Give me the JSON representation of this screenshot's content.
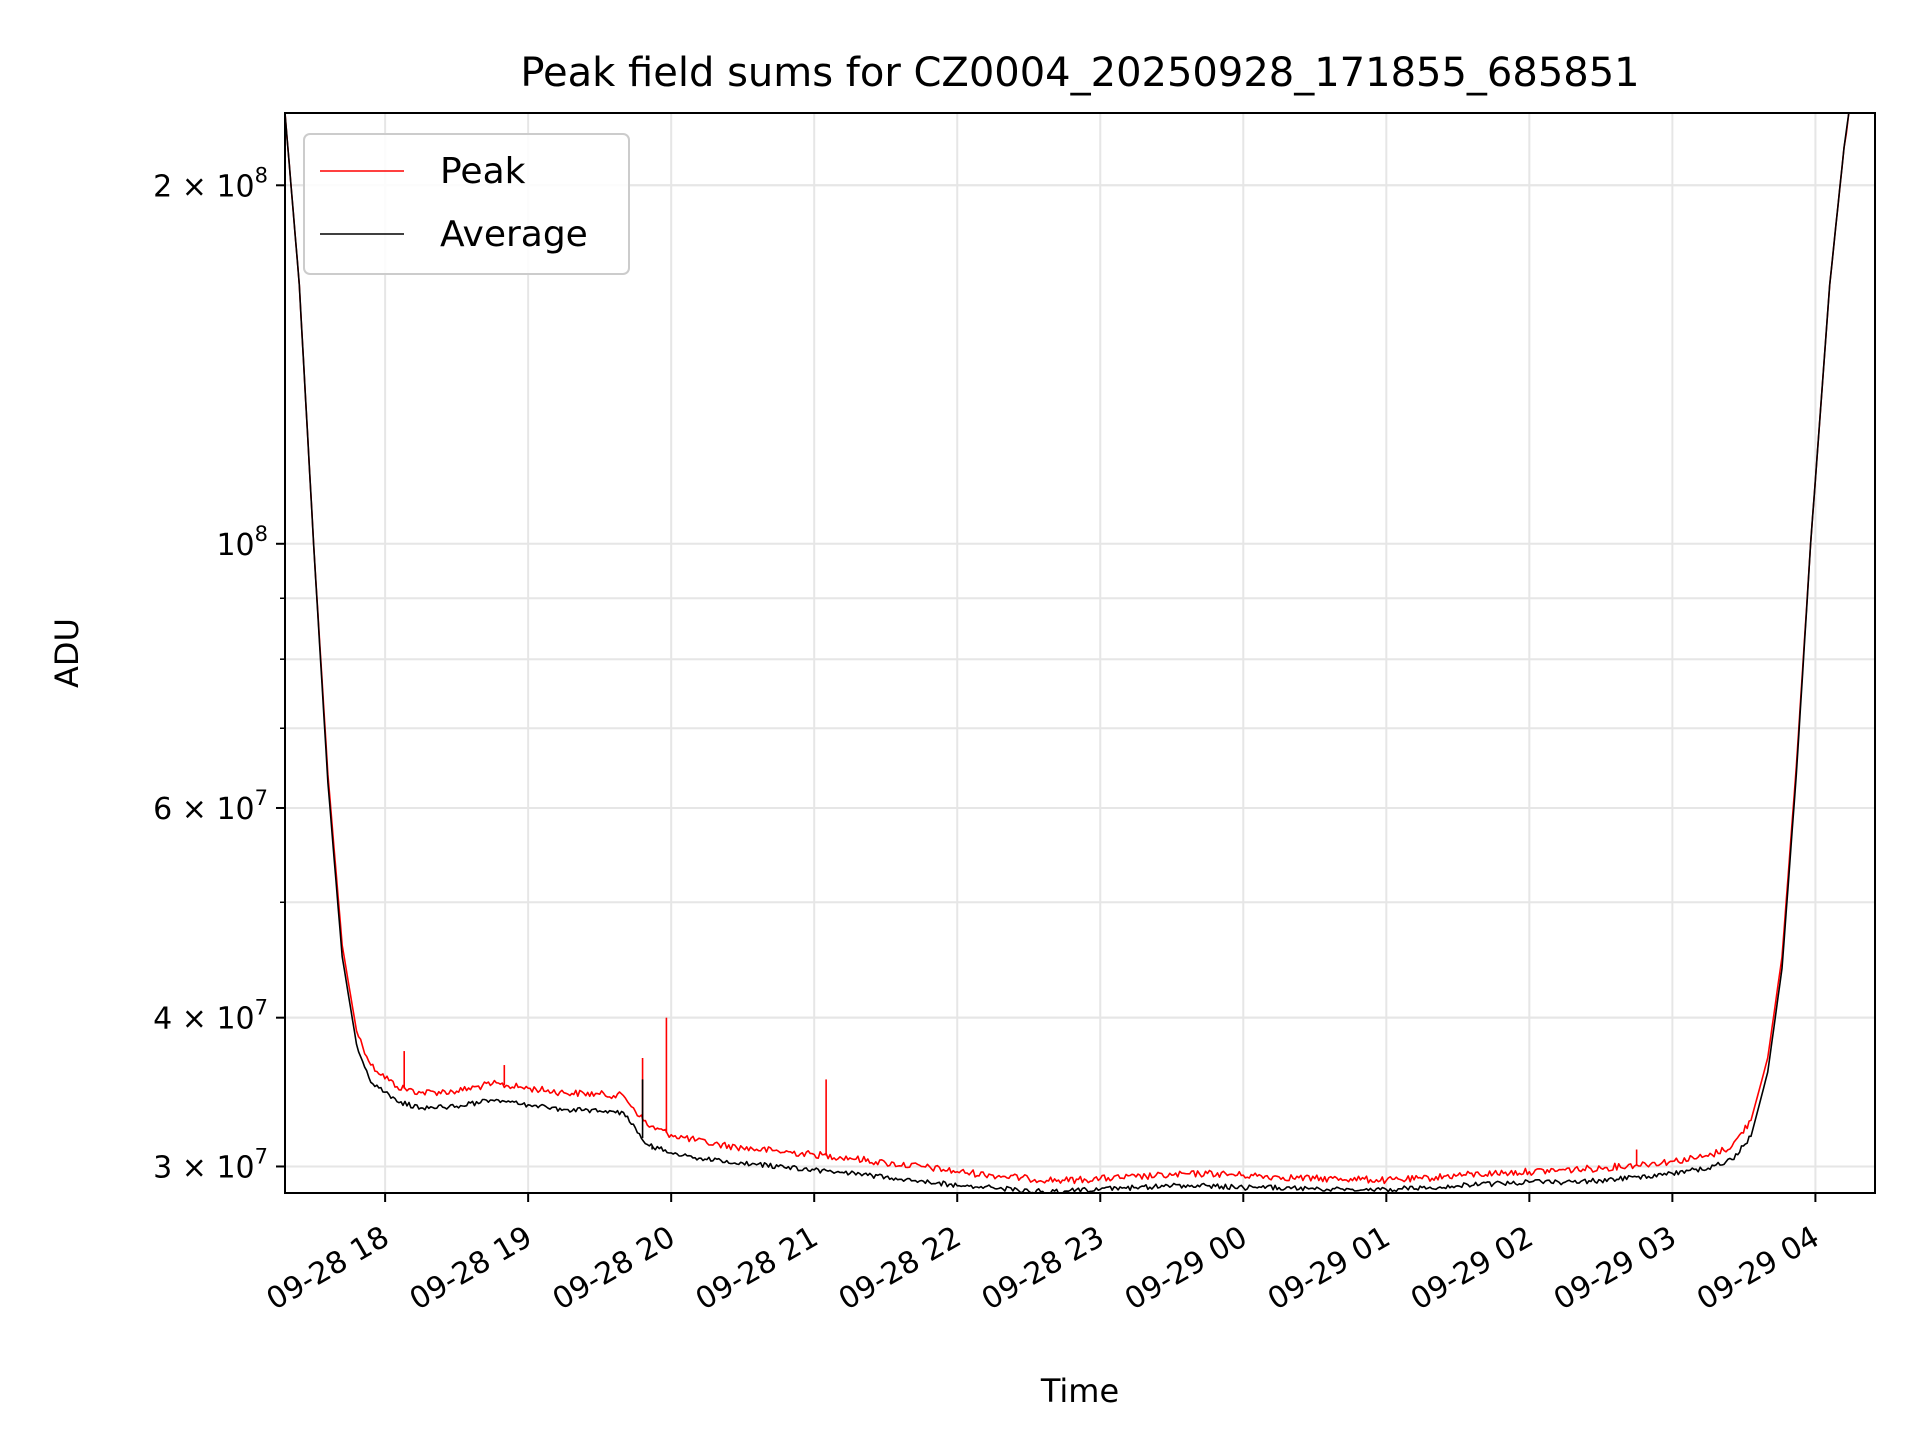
{
  "chart_data": {
    "type": "line",
    "title": "Peak field sums for CZ0004_20250928_171855_685851",
    "xlabel": "Time",
    "ylabel": "ADU",
    "y_scale": "log",
    "xlim": [
      "2025-09-28 17:18",
      "2025-09-29 04:25"
    ],
    "ylim": [
      28500000,
      230000000
    ],
    "grid": true,
    "legend_position": "top-left",
    "x_ticks": [
      "09-28 18",
      "09-28 19",
      "09-28 20",
      "09-28 21",
      "09-28 22",
      "09-28 23",
      "09-29 00",
      "09-29 01",
      "09-29 02",
      "09-29 03",
      "09-29 04"
    ],
    "y_ticks": [
      {
        "value": 200000000,
        "mantissa": "2",
        "exponent": "8"
      },
      {
        "value": 100000000,
        "mantissa": "",
        "exponent": "8"
      },
      {
        "value": 60000000,
        "mantissa": "6",
        "exponent": "7"
      },
      {
        "value": 40000000,
        "mantissa": "4",
        "exponent": "7"
      },
      {
        "value": 30000000,
        "mantissa": "3",
        "exponent": "7"
      }
    ],
    "series": [
      {
        "name": "Peak",
        "color": "#ff0000",
        "points": [
          [
            "2025-09-28 17:18",
            230000000
          ],
          [
            "2025-09-28 17:24",
            165000000
          ],
          [
            "2025-09-28 17:30",
            100000000
          ],
          [
            "2025-09-28 17:36",
            64000000
          ],
          [
            "2025-09-28 17:42",
            46000000
          ],
          [
            "2025-09-28 17:48",
            39000000
          ],
          [
            "2025-09-28 17:54",
            36500000
          ],
          [
            "2025-09-28 18:05",
            35000000
          ],
          [
            "2025-09-28 18:15",
            34600000
          ],
          [
            "2025-09-28 18:30",
            34700000
          ],
          [
            "2025-09-28 18:45",
            35200000
          ],
          [
            "2025-09-28 19:00",
            34900000
          ],
          [
            "2025-09-28 19:15",
            34600000
          ],
          [
            "2025-09-28 19:30",
            34500000
          ],
          [
            "2025-09-28 19:40",
            34400000
          ],
          [
            "2025-09-28 19:50",
            32500000
          ],
          [
            "2025-09-28 20:00",
            31900000
          ],
          [
            "2025-09-28 20:15",
            31400000
          ],
          [
            "2025-09-28 20:30",
            31100000
          ],
          [
            "2025-09-28 20:45",
            30900000
          ],
          [
            "2025-09-28 21:00",
            30700000
          ],
          [
            "2025-09-28 21:15",
            30500000
          ],
          [
            "2025-09-28 21:30",
            30200000
          ],
          [
            "2025-09-28 21:45",
            30000000
          ],
          [
            "2025-09-28 22:00",
            29700000
          ],
          [
            "2025-09-28 22:15",
            29500000
          ],
          [
            "2025-09-28 22:30",
            29300000
          ],
          [
            "2025-09-28 22:45",
            29200000
          ],
          [
            "2025-09-28 23:00",
            29300000
          ],
          [
            "2025-09-28 23:15",
            29400000
          ],
          [
            "2025-09-28 23:30",
            29500000
          ],
          [
            "2025-09-28 23:45",
            29600000
          ],
          [
            "2025-09-29 00:00",
            29500000
          ],
          [
            "2025-09-29 00:15",
            29400000
          ],
          [
            "2025-09-29 00:30",
            29300000
          ],
          [
            "2025-09-29 00:45",
            29300000
          ],
          [
            "2025-09-29 01:00",
            29200000
          ],
          [
            "2025-09-29 01:15",
            29300000
          ],
          [
            "2025-09-29 01:30",
            29500000
          ],
          [
            "2025-09-29 01:45",
            29600000
          ],
          [
            "2025-09-29 02:00",
            29700000
          ],
          [
            "2025-09-29 02:15",
            29800000
          ],
          [
            "2025-09-29 02:30",
            29900000
          ],
          [
            "2025-09-29 02:45",
            30100000
          ],
          [
            "2025-09-29 03:00",
            30300000
          ],
          [
            "2025-09-29 03:15",
            30600000
          ],
          [
            "2025-09-29 03:25",
            31200000
          ],
          [
            "2025-09-29 03:33",
            32800000
          ],
          [
            "2025-09-29 03:40",
            37000000
          ],
          [
            "2025-09-29 03:46",
            45000000
          ],
          [
            "2025-09-29 03:52",
            65000000
          ],
          [
            "2025-09-29 03:58",
            100000000
          ],
          [
            "2025-09-29 04:06",
            165000000
          ],
          [
            "2025-09-29 04:12",
            215000000
          ],
          [
            "2025-09-29 04:14",
            230000000
          ]
        ],
        "spikes": [
          [
            "2025-09-28 19:48",
            37000000
          ],
          [
            "2025-09-28 19:58",
            40000000
          ],
          [
            "2025-09-28 21:05",
            35500000
          ],
          [
            "2025-09-28 18:08",
            37500000
          ],
          [
            "2025-09-28 18:50",
            36500000
          ],
          [
            "2025-09-29 02:45",
            31000000
          ]
        ]
      },
      {
        "name": "Average",
        "color": "#000000",
        "points": [
          [
            "2025-09-28 17:18",
            230000000
          ],
          [
            "2025-09-28 17:24",
            165000000
          ],
          [
            "2025-09-28 17:30",
            100000000
          ],
          [
            "2025-09-28 17:36",
            63000000
          ],
          [
            "2025-09-28 17:42",
            45000000
          ],
          [
            "2025-09-28 17:48",
            38000000
          ],
          [
            "2025-09-28 17:54",
            35300000
          ],
          [
            "2025-09-28 18:05",
            34000000
          ],
          [
            "2025-09-28 18:15",
            33600000
          ],
          [
            "2025-09-28 18:30",
            33700000
          ],
          [
            "2025-09-28 18:45",
            34100000
          ],
          [
            "2025-09-28 19:00",
            33800000
          ],
          [
            "2025-09-28 19:15",
            33500000
          ],
          [
            "2025-09-28 19:30",
            33400000
          ],
          [
            "2025-09-28 19:40",
            33300000
          ],
          [
            "2025-09-28 19:50",
            31300000
          ],
          [
            "2025-09-28 20:00",
            30800000
          ],
          [
            "2025-09-28 20:15",
            30400000
          ],
          [
            "2025-09-28 20:30",
            30200000
          ],
          [
            "2025-09-28 20:45",
            30000000
          ],
          [
            "2025-09-28 21:00",
            29800000
          ],
          [
            "2025-09-28 21:15",
            29600000
          ],
          [
            "2025-09-28 21:30",
            29400000
          ],
          [
            "2025-09-28 21:45",
            29200000
          ],
          [
            "2025-09-28 22:00",
            28900000
          ],
          [
            "2025-09-28 22:15",
            28800000
          ],
          [
            "2025-09-28 22:30",
            28600000
          ],
          [
            "2025-09-28 22:45",
            28600000
          ],
          [
            "2025-09-28 23:00",
            28700000
          ],
          [
            "2025-09-28 23:15",
            28800000
          ],
          [
            "2025-09-28 23:30",
            28900000
          ],
          [
            "2025-09-28 23:45",
            28900000
          ],
          [
            "2025-09-29 00:00",
            28800000
          ],
          [
            "2025-09-29 00:15",
            28800000
          ],
          [
            "2025-09-29 00:30",
            28700000
          ],
          [
            "2025-09-29 00:45",
            28700000
          ],
          [
            "2025-09-29 01:00",
            28700000
          ],
          [
            "2025-09-29 01:15",
            28800000
          ],
          [
            "2025-09-29 01:30",
            28900000
          ],
          [
            "2025-09-29 01:45",
            29000000
          ],
          [
            "2025-09-29 02:00",
            29100000
          ],
          [
            "2025-09-29 02:15",
            29100000
          ],
          [
            "2025-09-29 02:30",
            29200000
          ],
          [
            "2025-09-29 02:45",
            29400000
          ],
          [
            "2025-09-29 03:00",
            29600000
          ],
          [
            "2025-09-29 03:15",
            29900000
          ],
          [
            "2025-09-29 03:25",
            30400000
          ],
          [
            "2025-09-29 03:33",
            31800000
          ],
          [
            "2025-09-29 03:40",
            36000000
          ],
          [
            "2025-09-29 03:46",
            44000000
          ],
          [
            "2025-09-29 03:52",
            64000000
          ],
          [
            "2025-09-29 03:58",
            100000000
          ],
          [
            "2025-09-29 04:06",
            165000000
          ],
          [
            "2025-09-29 04:12",
            215000000
          ],
          [
            "2025-09-29 04:14",
            230000000
          ]
        ],
        "spikes": [
          [
            "2025-09-28 19:48",
            35500000
          ],
          [
            "2025-09-28 19:52",
            31000000
          ]
        ]
      }
    ]
  }
}
